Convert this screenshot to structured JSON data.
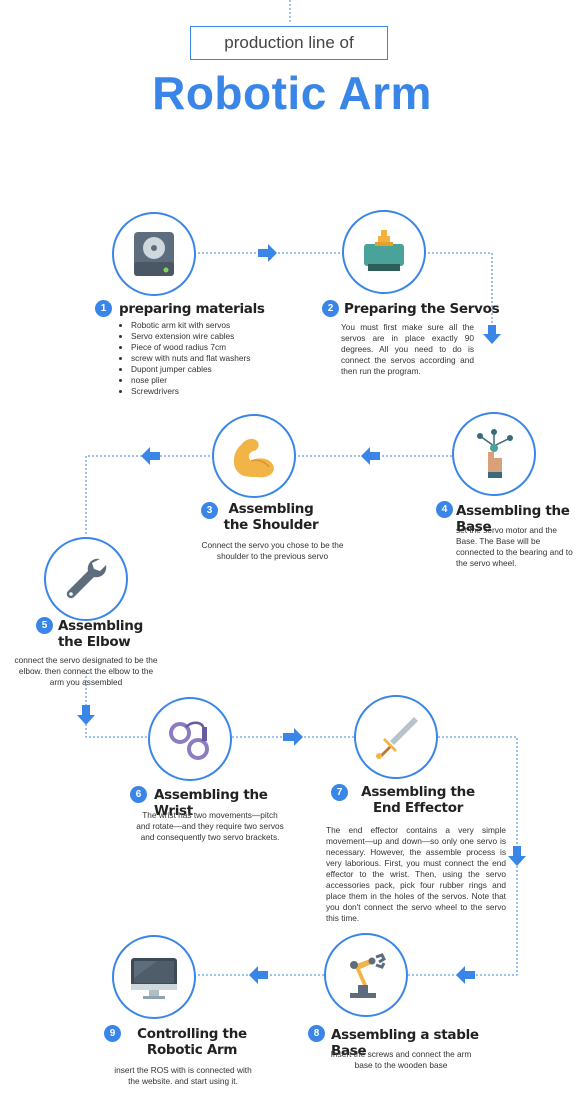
{
  "header": {
    "subtitle": "production line of",
    "title": "Robotic Arm"
  },
  "colors": {
    "accent": "#3a86e8",
    "text": "#333333"
  },
  "steps": [
    {
      "number": "1",
      "title": "preparing materials",
      "icon": "hard-drive-icon",
      "items": [
        "Robotic arm kit with servos",
        "Servo extension wire cables",
        "Piece of wood radius 7cm",
        "screw with nuts and flat washers",
        "Dupont jumper cables",
        "nose plier",
        "Screwdrivers"
      ]
    },
    {
      "number": "2",
      "title": "Preparing the Servos",
      "icon": "servo-icon",
      "description": "You must first make sure all the servos are in place exactly 90 degrees. All you need to do is connect the servos according and then run the program."
    },
    {
      "number": "3",
      "title": "Assembling the Shoulder",
      "icon": "flexed-arm-icon",
      "description": "Connect the servo you chose to be the shoulder to the previous servo"
    },
    {
      "number": "4",
      "title": "Assembling the Base",
      "icon": "hand-network-icon",
      "description": "set the servo motor and the Base. The Base will be connected to the bearing and to the servo wheel."
    },
    {
      "number": "5",
      "title": "Assembling the Elbow",
      "icon": "wrench-icon",
      "description": "connect the servo designated to be the elbow. then connect the elbow to the arm you assembled"
    },
    {
      "number": "6",
      "title": "Assembling the Wrist",
      "icon": "handcuffs-icon",
      "description": "The wrist has two movements—pitch and rotate—and they require two servos and consequently two servo brackets."
    },
    {
      "number": "7",
      "title": "Assembling the End Effector",
      "icon": "sword-icon",
      "description": "The end effector contains a very simple movement—up and down—so only one servo is necessary. However, the assemble process is very laborious. First, you must connect the end effector to the wrist. Then, using the servo accessories pack, pick four rubber rings and place them in the holes of the servos. Note that you don't connect the servo wheel to the servo this time."
    },
    {
      "number": "8",
      "title": "Assembling a stable Base",
      "icon": "robot-arm-icon",
      "description": "Insert the screws and connect the arm base to the wooden base"
    },
    {
      "number": "9",
      "title": "Controlling the Robotic Arm",
      "icon": "monitor-icon",
      "description": "insert the ROS with is connected with the website. and start using it."
    }
  ]
}
